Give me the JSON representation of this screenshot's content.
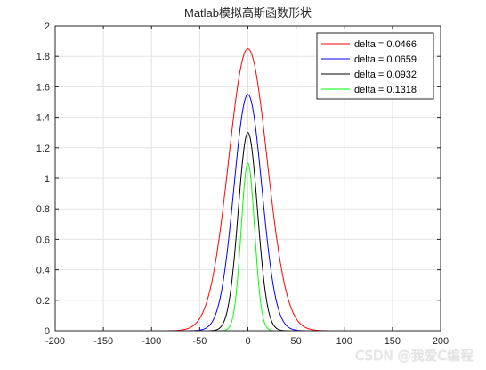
{
  "chart_data": {
    "type": "line",
    "title": "Matlab模拟高斯函数形状",
    "xlabel": "",
    "ylabel": "",
    "xlim": [
      -200,
      200
    ],
    "ylim": [
      0,
      2
    ],
    "xticks": [
      -200,
      -150,
      -100,
      -50,
      0,
      50,
      100,
      150,
      200
    ],
    "yticks": [
      0,
      0.2,
      0.4,
      0.6,
      0.8,
      1,
      1.2,
      1.4,
      1.6,
      1.8,
      2
    ],
    "xtick_labels": [
      "-200",
      "-150",
      "-100",
      "-50",
      "0",
      "50",
      "100",
      "150",
      "200"
    ],
    "ytick_labels": [
      "0",
      "0.2",
      "0.4",
      "0.6",
      "0.8",
      "1",
      "1.2",
      "1.4",
      "1.6",
      "1.8",
      "2"
    ],
    "grid": true,
    "legend_position": "top-right",
    "series": [
      {
        "name": "delta = 0.0466",
        "color": "#ff0000",
        "peak": 1.85,
        "sigma": 20
      },
      {
        "name": "delta = 0.0659",
        "color": "#0000ff",
        "peak": 1.55,
        "sigma": 14.5
      },
      {
        "name": "delta = 0.0932",
        "color": "#000000",
        "peak": 1.3,
        "sigma": 10
      },
      {
        "name": "delta = 0.1318",
        "color": "#00ff00",
        "peak": 1.1,
        "sigma": 7
      }
    ]
  },
  "watermark": "CSDN @我爱C编程"
}
